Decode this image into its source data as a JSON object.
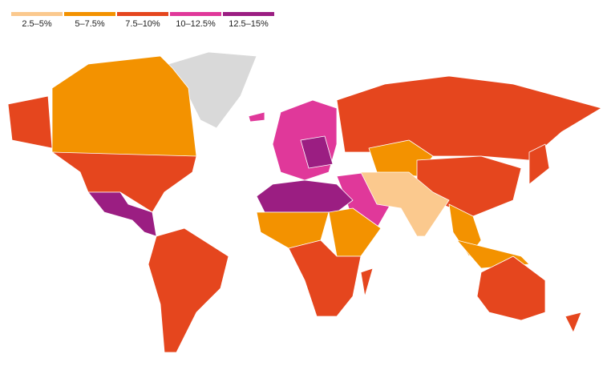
{
  "legend": [
    {
      "label": "2.5–5%",
      "color": "#fbc98e"
    },
    {
      "label": "5–7.5%",
      "color": "#f39200"
    },
    {
      "label": "7.5–10%",
      "color": "#e5461e"
    },
    {
      "label": "10–12.5%",
      "color": "#e0389a"
    },
    {
      "label": "12.5–15%",
      "color": "#9b1e82"
    }
  ]
}
